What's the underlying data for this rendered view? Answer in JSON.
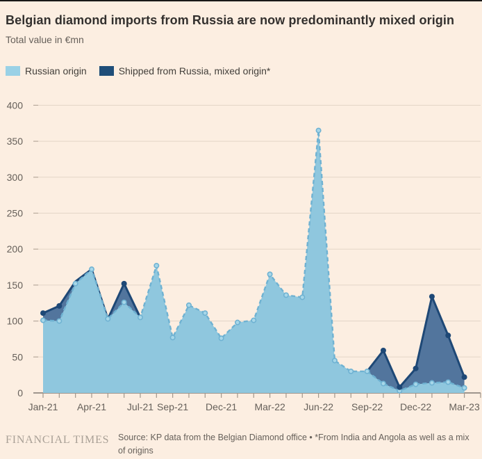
{
  "header": {
    "title": "Belgian diamond imports from Russia are now predominantly mixed origin",
    "subtitle": "Total value in €mn"
  },
  "legend": [
    {
      "label": "Russian origin",
      "color": "#9AD1E6"
    },
    {
      "label": "Shipped from Russia, mixed origin*",
      "color": "#1F4E79"
    }
  ],
  "footer": {
    "brand": "FINANCIAL TIMES",
    "source": "Source: KP data from the Belgian Diamond office • *From India and Angola as well as a mix of origins"
  },
  "chart_data": {
    "type": "area",
    "stacked": false,
    "title": "Belgian diamond imports from Russia are now predominantly mixed origin",
    "subtitle": "Total value in €mn",
    "xlabel": "",
    "ylabel": "Total value in €mn",
    "ylim": [
      0,
      400
    ],
    "yticks": [
      0,
      50,
      100,
      150,
      200,
      250,
      300,
      350,
      400
    ],
    "grid": true,
    "legend_position": "top-left",
    "x": [
      "Jan-21",
      "Feb-21",
      "Mar-21",
      "Apr-21",
      "May-21",
      "Jun-21",
      "Jul-21",
      "Aug-21",
      "Sep-21",
      "Oct-21",
      "Nov-21",
      "Dec-21",
      "Jan-22",
      "Feb-22",
      "Mar-22",
      "Apr-22",
      "May-22",
      "Jun-22",
      "Jul-22",
      "Aug-22",
      "Sep-22",
      "Oct-22",
      "Nov-22",
      "Dec-22",
      "Jan-23",
      "Feb-23",
      "Mar-23"
    ],
    "xticks": [
      {
        "month_index": 0,
        "label": "Jan-21"
      },
      {
        "month_index": 3,
        "label": "Apr-21"
      },
      {
        "month_index": 6,
        "label": "Jul-21"
      },
      {
        "month_index": 8,
        "label": "Sep-21"
      },
      {
        "month_index": 11,
        "label": "Dec-21"
      },
      {
        "month_index": 14,
        "label": "Mar-22"
      },
      {
        "month_index": 17,
        "label": "Jun-22"
      },
      {
        "month_index": 20,
        "label": "Sep-22"
      },
      {
        "month_index": 23,
        "label": "Dec-22"
      },
      {
        "month_index": 26,
        "label": "Mar-23"
      }
    ],
    "series": [
      {
        "name": "Russian origin",
        "fill": "#8FC7DE",
        "stroke": "#6FB2D2",
        "dot_fill": "#A7D7E9",
        "values": [
          101,
          100,
          152,
          172,
          103,
          126,
          105,
          177,
          77,
          122,
          111,
          76,
          98,
          101,
          165,
          136,
          133,
          365,
          45,
          30,
          30,
          13,
          3,
          12,
          14,
          15,
          7
        ]
      },
      {
        "name": "Shipped from Russia, mixed origin*",
        "fill": "#52759D",
        "stroke": "#1E4876",
        "dot_fill": "#1E4876",
        "values": [
          111,
          121,
          155,
          172,
          103,
          152,
          105,
          null,
          null,
          null,
          null,
          null,
          null,
          null,
          null,
          null,
          null,
          null,
          null,
          null,
          30,
          59,
          8,
          34,
          134,
          80,
          22
        ]
      }
    ]
  }
}
